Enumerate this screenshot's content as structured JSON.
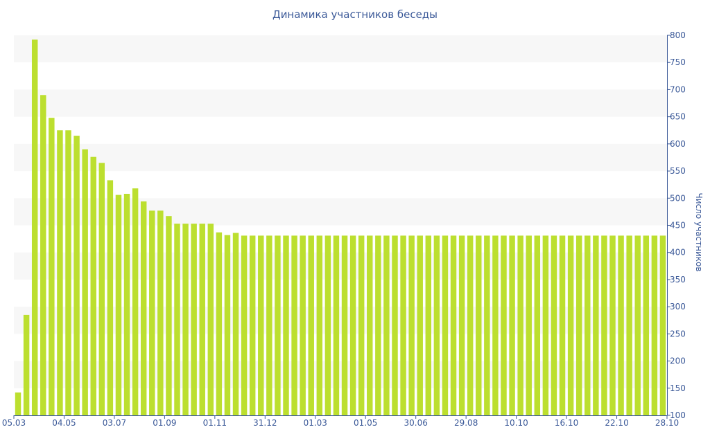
{
  "chart_data": {
    "type": "bar",
    "title": "Динамика участников беседы",
    "ylabel": "Число участников",
    "xlabel": "",
    "y_axis_position": "right",
    "ylim": [
      100,
      800
    ],
    "y_ticks": [
      100,
      150,
      200,
      250,
      300,
      350,
      400,
      450,
      500,
      550,
      600,
      650,
      700,
      750,
      800
    ],
    "x_tick_labels": [
      "05.03",
      "04.05",
      "03.07",
      "01.09",
      "01.11",
      "31.12",
      "01.03",
      "01.05",
      "30.06",
      "29.08",
      "10.10",
      "16.10",
      "22.10",
      "28.10"
    ],
    "grid": "alternating horizontal bands",
    "bar_color": "#bcdf2f",
    "band_color": "#f7f7f7",
    "text_color": "#3b5998",
    "values": [
      142,
      285,
      792,
      690,
      648,
      625,
      625,
      615,
      590,
      576,
      565,
      533,
      506,
      508,
      518,
      494,
      477,
      477,
      467,
      453,
      453,
      453,
      453,
      453,
      437,
      432,
      436,
      431,
      431,
      431,
      431,
      431,
      431,
      431,
      431,
      431,
      431,
      431,
      431,
      431,
      431,
      431,
      431,
      431,
      431,
      431,
      431,
      431,
      431,
      431,
      431,
      431,
      431,
      431,
      431,
      431,
      431,
      431,
      431,
      431,
      431,
      431,
      431,
      431,
      431,
      431,
      431,
      431,
      431,
      431,
      431,
      431,
      431,
      431,
      431,
      431,
      431,
      431
    ]
  }
}
